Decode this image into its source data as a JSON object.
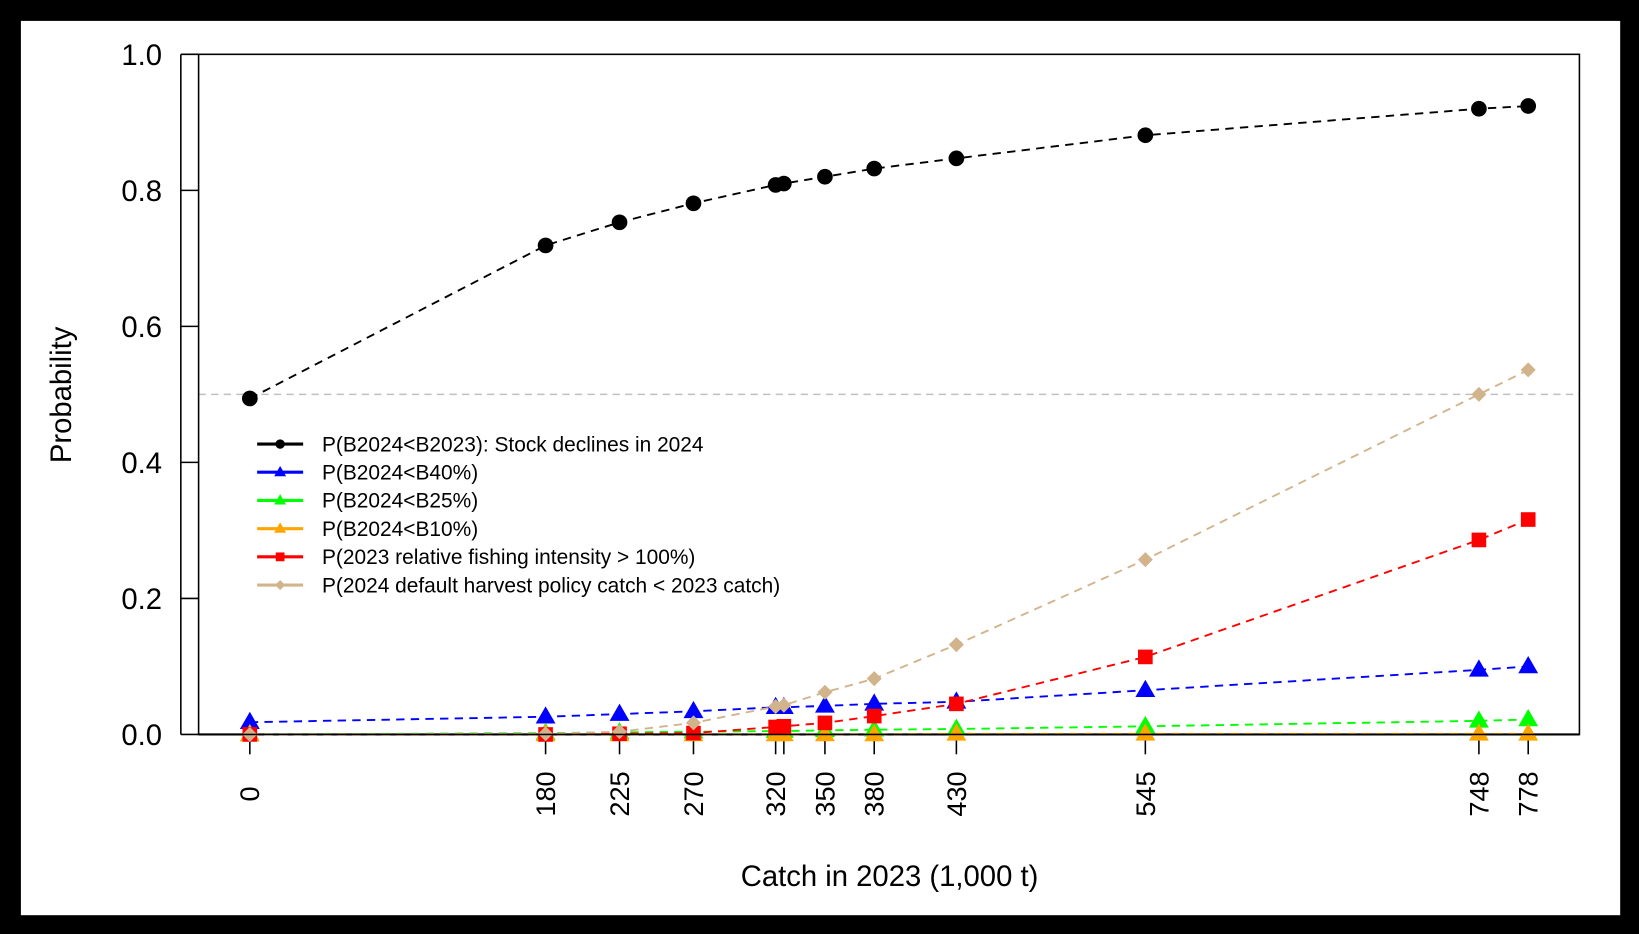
{
  "chart_data": {
    "type": "line",
    "title": "",
    "xlabel": "Catch in 2023 (1,000 t)",
    "ylabel": "Probability",
    "ylim": [
      0,
      1
    ],
    "yticks": [
      "0.0",
      "0.2",
      "0.4",
      "0.6",
      "0.8",
      "1.0"
    ],
    "x": [
      0,
      180,
      225,
      270,
      320,
      325,
      350,
      380,
      430,
      545,
      748,
      778
    ],
    "xtick_labels": [
      "0",
      "180",
      "225",
      "270",
      "320",
      "",
      "350",
      "380",
      "430",
      "545",
      "748",
      "778"
    ],
    "reference_line": {
      "y": 0.5,
      "color": "#c0c0c0",
      "style": "dashed"
    },
    "grid": false,
    "legend_placement": "center-left",
    "series": [
      {
        "name": "P(B2024<B2023): Stock declines in 2024",
        "color": "#000000",
        "marker": "circle",
        "values": [
          0.494,
          0.719,
          0.753,
          0.781,
          0.808,
          0.81,
          0.82,
          0.832,
          0.847,
          0.881,
          0.92,
          0.924
        ]
      },
      {
        "name": "P(B2024<B40%)",
        "color": "#0000ff",
        "marker": "triangle",
        "values": [
          0.018,
          0.026,
          0.03,
          0.034,
          0.04,
          0.04,
          0.042,
          0.045,
          0.048,
          0.065,
          0.095,
          0.1
        ]
      },
      {
        "name": "P(B2024<B25%)",
        "color": "#00ff00",
        "marker": "triangle",
        "values": [
          0.0,
          0.002,
          0.003,
          0.004,
          0.005,
          0.005,
          0.006,
          0.007,
          0.008,
          0.012,
          0.02,
          0.022
        ]
      },
      {
        "name": "P(B2024<B10%)",
        "color": "#ffa500",
        "marker": "triangle",
        "values": [
          0.0,
          0.0,
          0.0,
          0.0,
          0.0,
          0.0,
          0.0,
          0.0,
          0.001,
          0.001,
          0.001,
          0.001
        ]
      },
      {
        "name": "P(2023 relative fishing intensity > 100%)",
        "color": "#ff0000",
        "marker": "square",
        "values": [
          0.0,
          0.0,
          0.001,
          0.002,
          0.011,
          0.012,
          0.017,
          0.027,
          0.045,
          0.114,
          0.286,
          0.316
        ]
      },
      {
        "name": "P(2024 default harvest policy catch < 2023 catch)",
        "color": "#d2b48c",
        "marker": "diamond",
        "values": [
          0.0,
          0.001,
          0.004,
          0.017,
          0.041,
          0.043,
          0.062,
          0.082,
          0.132,
          0.257,
          0.5,
          0.536
        ]
      }
    ]
  }
}
